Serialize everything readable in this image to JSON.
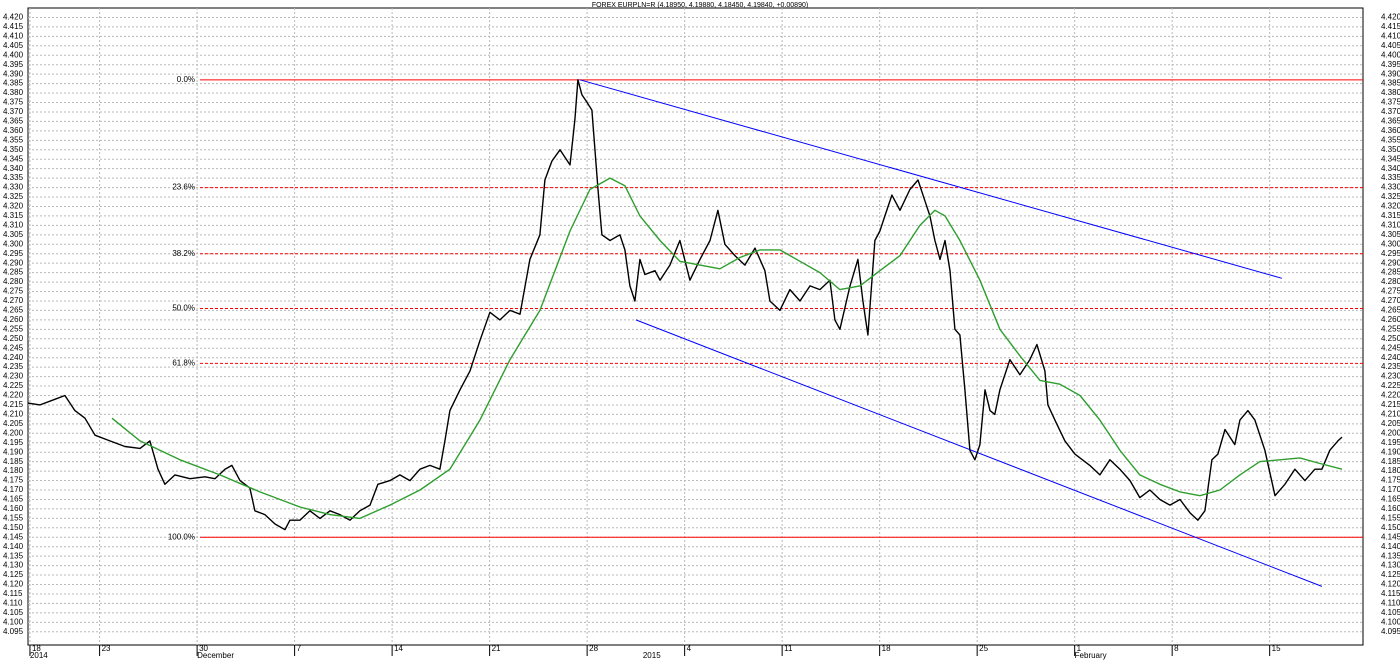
{
  "chart_data": {
    "type": "line",
    "title": "FOREX EURPLN=R (4.18950, 4.19880, 4.18450, 4.19840, +0.00890)",
    "xlim": [
      -0.14,
      95.7
    ],
    "ylim": [
      4.088,
      4.425
    ],
    "grid": true,
    "xticks": [
      {
        "value": 0,
        "label": "18"
      },
      {
        "value": 5,
        "label": "23"
      },
      {
        "value": 12,
        "label": "30"
      },
      {
        "value": 19,
        "label": "7"
      },
      {
        "value": 26,
        "label": "14"
      },
      {
        "value": 33,
        "label": "21"
      },
      {
        "value": 40,
        "label": "28"
      },
      {
        "value": 47,
        "label": "4"
      },
      {
        "value": 54,
        "label": "11"
      },
      {
        "value": 61,
        "label": "18"
      },
      {
        "value": 68,
        "label": "25"
      },
      {
        "value": 75,
        "label": "1"
      },
      {
        "value": 82,
        "label": "8"
      },
      {
        "value": 89,
        "label": "15"
      }
    ],
    "xticks_major": [
      {
        "value": 0,
        "label": "2014"
      },
      {
        "value": 12,
        "label": "December"
      },
      {
        "value": 44,
        "label": "2015"
      },
      {
        "value": 75,
        "label": "February"
      }
    ],
    "yticks": [
      {
        "value": 4.095,
        "label": "4.095"
      },
      {
        "value": 4.1,
        "label": "4.100"
      },
      {
        "value": 4.105,
        "label": "4.105"
      },
      {
        "value": 4.11,
        "label": "4.110"
      },
      {
        "value": 4.115,
        "label": "4.115"
      },
      {
        "value": 4.12,
        "label": "4.120"
      },
      {
        "value": 4.125,
        "label": "4.125"
      },
      {
        "value": 4.13,
        "label": "4.130"
      },
      {
        "value": 4.135,
        "label": "4.135"
      },
      {
        "value": 4.14,
        "label": "4.140"
      },
      {
        "value": 4.145,
        "label": "4.145"
      },
      {
        "value": 4.15,
        "label": "4.150"
      },
      {
        "value": 4.155,
        "label": "4.155"
      },
      {
        "value": 4.16,
        "label": "4.160"
      },
      {
        "value": 4.165,
        "label": "4.165"
      },
      {
        "value": 4.17,
        "label": "4.170"
      },
      {
        "value": 4.175,
        "label": "4.175"
      },
      {
        "value": 4.18,
        "label": "4.180"
      },
      {
        "value": 4.185,
        "label": "4.185"
      },
      {
        "value": 4.19,
        "label": "4.190"
      },
      {
        "value": 4.195,
        "label": "4.195"
      },
      {
        "value": 4.2,
        "label": "4.200"
      },
      {
        "value": 4.205,
        "label": "4.205"
      },
      {
        "value": 4.21,
        "label": "4.210"
      },
      {
        "value": 4.215,
        "label": "4.215"
      },
      {
        "value": 4.22,
        "label": "4.220"
      },
      {
        "value": 4.225,
        "label": "4.225"
      },
      {
        "value": 4.23,
        "label": "4.230"
      },
      {
        "value": 4.235,
        "label": "4.235"
      },
      {
        "value": 4.24,
        "label": "4.240"
      },
      {
        "value": 4.245,
        "label": "4.245"
      },
      {
        "value": 4.25,
        "label": "4.250"
      },
      {
        "value": 4.255,
        "label": "4.255"
      },
      {
        "value": 4.26,
        "label": "4.260"
      },
      {
        "value": 4.265,
        "label": "4.265"
      },
      {
        "value": 4.27,
        "label": "4.270"
      },
      {
        "value": 4.275,
        "label": "4.275"
      },
      {
        "value": 4.28,
        "label": "4.280"
      },
      {
        "value": 4.285,
        "label": "4.285"
      },
      {
        "value": 4.29,
        "label": "4.290"
      },
      {
        "value": 4.295,
        "label": "4.295"
      },
      {
        "value": 4.3,
        "label": "4.300"
      },
      {
        "value": 4.305,
        "label": "4.305"
      },
      {
        "value": 4.31,
        "label": "4.310"
      },
      {
        "value": 4.315,
        "label": "4.315"
      },
      {
        "value": 4.32,
        "label": "4.320"
      },
      {
        "value": 4.325,
        "label": "4.325"
      },
      {
        "value": 4.33,
        "label": "4.330"
      },
      {
        "value": 4.335,
        "label": "4.335"
      },
      {
        "value": 4.34,
        "label": "4.340"
      },
      {
        "value": 4.345,
        "label": "4.345"
      },
      {
        "value": 4.35,
        "label": "4.350"
      },
      {
        "value": 4.355,
        "label": "4.355"
      },
      {
        "value": 4.36,
        "label": "4.360"
      },
      {
        "value": 4.365,
        "label": "4.365"
      },
      {
        "value": 4.37,
        "label": "4.370"
      },
      {
        "value": 4.375,
        "label": "4.375"
      },
      {
        "value": 4.38,
        "label": "4.380"
      },
      {
        "value": 4.385,
        "label": "4.385"
      },
      {
        "value": 4.39,
        "label": "4.390"
      },
      {
        "value": 4.395,
        "label": "4.395"
      },
      {
        "value": 4.4,
        "label": "4.400"
      },
      {
        "value": 4.405,
        "label": "4.405"
      },
      {
        "value": 4.41,
        "label": "4.410"
      },
      {
        "value": 4.415,
        "label": "4.415"
      },
      {
        "value": 4.42,
        "label": "4.420"
      }
    ],
    "series": [
      {
        "color": "#000000",
        "x": [
          -0.14,
          0.72,
          1.79,
          2.51,
          3.23,
          3.95,
          4.67,
          5.74,
          6.82,
          7.9,
          8.61,
          9.19,
          9.69,
          10.41,
          11.49,
          12.56,
          13.28,
          14.0,
          14.5,
          15.08,
          15.79,
          16.15,
          16.87,
          17.59,
          18.31,
          18.66,
          19.38,
          20.1,
          20.82,
          21.54,
          22.25,
          22.97,
          23.69,
          24.41,
          24.98,
          25.84,
          26.56,
          27.28,
          28.0,
          28.71,
          29.43,
          29.79,
          30.15,
          30.87,
          31.59,
          32.3,
          33.02,
          33.74,
          34.46,
          35.18,
          35.89,
          36.61,
          36.97,
          37.47,
          38.05,
          38.77,
          39.12,
          39.34,
          39.63,
          39.91,
          40.34,
          40.78,
          41.06,
          41.64,
          42.35,
          42.71,
          43.07,
          43.43,
          43.79,
          44.15,
          44.87,
          45.23,
          45.94,
          46.66,
          47.38,
          48.1,
          48.82,
          49.39,
          49.89,
          50.61,
          51.33,
          52.05,
          52.76,
          53.12,
          53.84,
          54.56,
          55.28,
          56.0,
          56.71,
          57.43,
          57.79,
          58.15,
          58.87,
          59.44,
          59.8,
          60.16,
          60.66,
          61.02,
          61.38,
          61.88,
          62.46,
          63.17,
          63.75,
          64.25,
          64.61,
          64.97,
          65.33,
          65.69,
          66.05,
          66.4,
          66.76,
          67.12,
          67.48,
          67.84,
          68.2,
          68.56,
          68.92,
          69.27,
          69.63,
          70.35,
          71.07,
          71.79,
          72.29,
          72.86,
          73.08,
          73.58,
          74.3,
          75.02,
          76.09,
          76.81,
          77.53,
          78.25,
          78.97,
          79.68,
          80.4,
          81.12,
          81.84,
          82.56,
          83.27,
          83.85,
          84.35,
          84.85,
          85.28,
          85.79,
          86.5,
          86.86,
          87.44,
          87.94,
          88.66,
          89.38,
          90.09,
          90.81,
          91.53,
          92.25,
          92.75,
          93.32,
          93.9,
          94.19
        ],
        "values": [
          4.216,
          4.215,
          4.218,
          4.22,
          4.212,
          4.208,
          4.199,
          4.196,
          4.193,
          4.192,
          4.196,
          4.181,
          4.173,
          4.178,
          4.176,
          4.177,
          4.176,
          4.181,
          4.183,
          4.175,
          4.171,
          4.159,
          4.157,
          4.152,
          4.149,
          4.154,
          4.154,
          4.159,
          4.155,
          4.159,
          4.157,
          4.154,
          4.159,
          4.162,
          4.173,
          4.175,
          4.178,
          4.175,
          4.181,
          4.183,
          4.181,
          4.196,
          4.212,
          4.223,
          4.233,
          4.249,
          4.264,
          4.26,
          4.265,
          4.263,
          4.292,
          4.305,
          4.334,
          4.344,
          4.35,
          4.342,
          4.366,
          4.387,
          4.379,
          4.376,
          4.371,
          4.329,
          4.305,
          4.302,
          4.305,
          4.297,
          4.278,
          4.27,
          4.292,
          4.284,
          4.286,
          4.281,
          4.289,
          4.302,
          4.281,
          4.292,
          4.302,
          4.318,
          4.3,
          4.294,
          4.289,
          4.298,
          4.286,
          4.27,
          4.265,
          4.276,
          4.27,
          4.278,
          4.276,
          4.281,
          4.26,
          4.255,
          4.278,
          4.292,
          4.27,
          4.252,
          4.302,
          4.307,
          4.315,
          4.326,
          4.318,
          4.329,
          4.334,
          4.323,
          4.315,
          4.302,
          4.292,
          4.302,
          4.286,
          4.255,
          4.252,
          4.223,
          4.191,
          4.186,
          4.194,
          4.223,
          4.212,
          4.21,
          4.223,
          4.239,
          4.231,
          4.239,
          4.247,
          4.233,
          4.215,
          4.207,
          4.196,
          4.189,
          4.183,
          4.178,
          4.186,
          4.181,
          4.175,
          4.166,
          4.17,
          4.165,
          4.162,
          4.165,
          4.158,
          4.154,
          4.159,
          4.186,
          4.189,
          4.202,
          4.194,
          4.207,
          4.212,
          4.207,
          4.191,
          4.167,
          4.173,
          4.181,
          4.175,
          4.181,
          4.181,
          4.191,
          4.196,
          4.198
        ]
      },
      {
        "color": "#2e9e2e",
        "x": [
          5.89,
          7.9,
          10.77,
          13.64,
          16.51,
          19.38,
          21.54,
          23.69,
          25.84,
          28.0,
          30.15,
          32.3,
          34.46,
          36.61,
          38.77,
          40.2,
          41.64,
          42.71,
          43.79,
          45.23,
          46.66,
          48.1,
          49.53,
          50.97,
          52.41,
          53.84,
          55.28,
          56.71,
          58.15,
          59.58,
          61.02,
          62.46,
          63.89,
          64.97,
          65.69,
          66.76,
          68.2,
          69.63,
          71.07,
          72.51,
          73.94,
          75.38,
          76.81,
          78.25,
          79.68,
          81.12,
          82.56,
          83.99,
          85.43,
          86.86,
          88.3,
          89.73,
          91.17,
          92.61,
          94.19
        ],
        "values": [
          4.208,
          4.196,
          4.186,
          4.178,
          4.169,
          4.161,
          4.157,
          4.155,
          4.162,
          4.17,
          4.181,
          4.207,
          4.239,
          4.265,
          4.307,
          4.329,
          4.335,
          4.331,
          4.315,
          4.302,
          4.291,
          4.289,
          4.287,
          4.293,
          4.297,
          4.297,
          4.291,
          4.285,
          4.276,
          4.278,
          4.286,
          4.294,
          4.31,
          4.318,
          4.315,
          4.302,
          4.281,
          4.255,
          4.241,
          4.228,
          4.226,
          4.22,
          4.207,
          4.191,
          4.178,
          4.173,
          4.169,
          4.167,
          4.17,
          4.178,
          4.185,
          4.186,
          4.187,
          4.184,
          4.181
        ]
      }
    ],
    "trendlines": [
      {
        "color": "#0000ff",
        "x": [
          39.48,
          89.88
        ],
        "values": [
          4.387,
          4.282
        ]
      },
      {
        "color": "#0000ff",
        "x": [
          43.5,
          92.75
        ],
        "values": [
          4.26,
          4.119
        ]
      }
    ],
    "fib_color": "#ff0000",
    "fib_levels": [
      {
        "label": "0.0%",
        "value": 4.387
      },
      {
        "label": "23.6%",
        "value": 4.33
      },
      {
        "label": "38.2%",
        "value": 4.295
      },
      {
        "label": "50.0%",
        "value": 4.266
      },
      {
        "label": "61.8%",
        "value": 4.237
      },
      {
        "label": "100.0%",
        "value": 4.145
      }
    ]
  }
}
